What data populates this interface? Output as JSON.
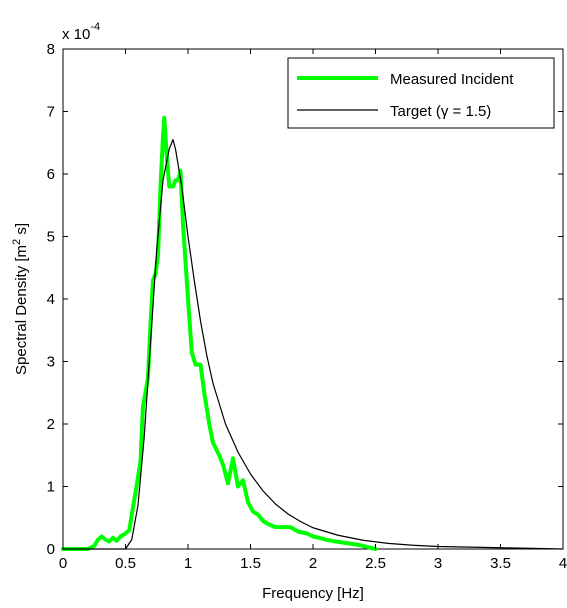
{
  "chart_data": {
    "type": "line",
    "title": "",
    "xlabel": "Frequency [Hz]",
    "ylabel": {
      "text_before": "Spectral Density [m",
      "superscript": "2",
      "text_after": " s]"
    },
    "y_multiplier": {
      "base": "x 10",
      "exponent": "-4"
    },
    "xlim": [
      0,
      4
    ],
    "ylim": [
      0,
      8
    ],
    "x_ticks": [
      0,
      0.5,
      1,
      1.5,
      2,
      2.5,
      3,
      3.5,
      4
    ],
    "x_tick_labels": [
      "0",
      "0.5",
      "1",
      "1.5",
      "2",
      "2.5",
      "3",
      "3.5",
      "4"
    ],
    "y_ticks": [
      0,
      1,
      2,
      3,
      4,
      5,
      6,
      7,
      8
    ],
    "y_tick_labels": [
      "0",
      "1",
      "2",
      "3",
      "4",
      "5",
      "6",
      "7",
      "8"
    ],
    "y_units": "x 10^-4",
    "grid": false,
    "legend_position": "top-right",
    "series": [
      {
        "name": "Measured Incident",
        "color": "#00ff00",
        "points": [
          [
            0,
            0
          ],
          [
            0.2,
            0
          ],
          [
            0.25,
            0.05
          ],
          [
            0.28,
            0.15
          ],
          [
            0.31,
            0.2
          ],
          [
            0.34,
            0.15
          ],
          [
            0.37,
            0.12
          ],
          [
            0.4,
            0.18
          ],
          [
            0.43,
            0.13
          ],
          [
            0.46,
            0.2
          ],
          [
            0.5,
            0.25
          ],
          [
            0.53,
            0.3
          ],
          [
            0.55,
            0.55
          ],
          [
            0.58,
            0.9
          ],
          [
            0.62,
            1.4
          ],
          [
            0.64,
            2.3
          ],
          [
            0.66,
            2.5
          ],
          [
            0.68,
            2.75
          ],
          [
            0.7,
            3.6
          ],
          [
            0.72,
            4.3
          ],
          [
            0.74,
            4.4
          ],
          [
            0.76,
            4.7
          ],
          [
            0.78,
            5.8
          ],
          [
            0.8,
            6.6
          ],
          [
            0.81,
            6.9
          ],
          [
            0.83,
            6.3
          ],
          [
            0.85,
            5.8
          ],
          [
            0.88,
            5.8
          ],
          [
            0.9,
            5.9
          ],
          [
            0.92,
            5.9
          ],
          [
            0.94,
            6.05
          ],
          [
            0.96,
            5.2
          ],
          [
            1.0,
            4.0
          ],
          [
            1.03,
            3.15
          ],
          [
            1.06,
            2.95
          ],
          [
            1.1,
            2.95
          ],
          [
            1.13,
            2.5
          ],
          [
            1.17,
            2.0
          ],
          [
            1.2,
            1.7
          ],
          [
            1.25,
            1.5
          ],
          [
            1.28,
            1.35
          ],
          [
            1.32,
            1.05
          ],
          [
            1.36,
            1.45
          ],
          [
            1.4,
            1.0
          ],
          [
            1.44,
            1.1
          ],
          [
            1.48,
            0.75
          ],
          [
            1.52,
            0.6
          ],
          [
            1.56,
            0.55
          ],
          [
            1.6,
            0.45
          ],
          [
            1.64,
            0.4
          ],
          [
            1.7,
            0.35
          ],
          [
            1.76,
            0.35
          ],
          [
            1.82,
            0.35
          ],
          [
            1.88,
            0.28
          ],
          [
            1.95,
            0.25
          ],
          [
            2.0,
            0.2
          ],
          [
            2.05,
            0.18
          ],
          [
            2.1,
            0.15
          ],
          [
            2.18,
            0.12
          ],
          [
            2.25,
            0.1
          ],
          [
            2.32,
            0.08
          ],
          [
            2.38,
            0.06
          ],
          [
            2.44,
            0.03
          ],
          [
            2.5,
            0
          ]
        ]
      },
      {
        "name": "Target (γ = 1.5)",
        "color": "#000000",
        "points": [
          [
            0,
            0
          ],
          [
            0.5,
            0
          ],
          [
            0.55,
            0.15
          ],
          [
            0.6,
            0.7
          ],
          [
            0.65,
            1.8
          ],
          [
            0.7,
            3.3
          ],
          [
            0.75,
            4.8
          ],
          [
            0.8,
            5.9
          ],
          [
            0.85,
            6.4
          ],
          [
            0.88,
            6.55
          ],
          [
            0.9,
            6.4
          ],
          [
            0.95,
            5.8
          ],
          [
            1.0,
            5.0
          ],
          [
            1.05,
            4.3
          ],
          [
            1.1,
            3.65
          ],
          [
            1.15,
            3.1
          ],
          [
            1.2,
            2.65
          ],
          [
            1.3,
            2.0
          ],
          [
            1.4,
            1.55
          ],
          [
            1.5,
            1.2
          ],
          [
            1.6,
            0.93
          ],
          [
            1.7,
            0.72
          ],
          [
            1.8,
            0.56
          ],
          [
            1.9,
            0.44
          ],
          [
            2.0,
            0.34
          ],
          [
            2.2,
            0.22
          ],
          [
            2.4,
            0.14
          ],
          [
            2.6,
            0.09
          ],
          [
            2.8,
            0.06
          ],
          [
            3.0,
            0.04
          ],
          [
            3.5,
            0.02
          ],
          [
            4.0,
            0
          ]
        ]
      }
    ]
  }
}
